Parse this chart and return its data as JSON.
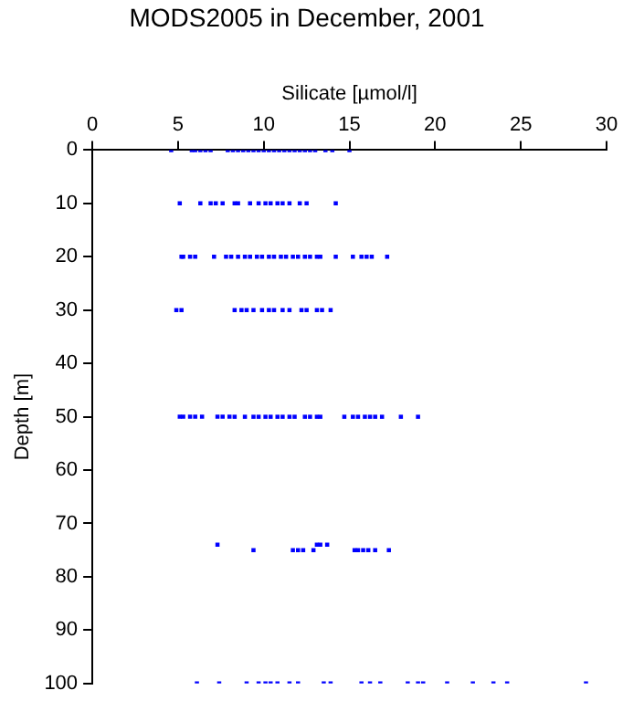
{
  "chart_data": {
    "type": "scatter",
    "title": "MODS2005 in December, 2001",
    "xlabel": "Silicate [µmol/l]",
    "ylabel": "Depth [m]",
    "xlim": [
      0,
      30
    ],
    "xticks": [
      0,
      5,
      10,
      15,
      20,
      25,
      30
    ],
    "ylim": [
      100,
      0
    ],
    "yticks": [
      0,
      10,
      20,
      30,
      40,
      50,
      60,
      70,
      80,
      90,
      100
    ],
    "grid": false,
    "legend": false,
    "marker": "square",
    "series": [
      {
        "color": "#0000ff",
        "x": [
          4.6,
          5.8,
          6.0,
          6.3,
          6.6,
          6.9,
          7.9,
          8.2,
          8.5,
          8.8,
          9.1,
          9.4,
          9.7,
          10.0,
          10.3,
          10.6,
          10.9,
          11.2,
          11.5,
          11.8,
          12.1,
          12.4,
          12.7,
          13.0,
          13.6,
          14.0,
          15.0,
          5.1,
          6.3,
          6.9,
          7.2,
          7.6,
          8.3,
          8.5,
          9.2,
          9.7,
          10.1,
          10.4,
          10.8,
          11.1,
          11.5,
          12.1,
          12.5,
          14.2,
          5.2,
          5.3,
          5.7,
          6.0,
          7.1,
          7.8,
          8.1,
          8.5,
          8.9,
          9.2,
          9.6,
          9.9,
          10.3,
          10.6,
          11.0,
          11.3,
          11.7,
          12.0,
          12.4,
          12.7,
          13.1,
          13.3,
          14.2,
          15.2,
          15.7,
          16.0,
          16.3,
          17.2,
          4.9,
          5.2,
          8.3,
          8.7,
          9.0,
          9.4,
          9.9,
          10.3,
          10.6,
          11.1,
          11.5,
          12.2,
          12.5,
          13.1,
          13.4,
          13.9,
          5.1,
          5.3,
          5.7,
          6.0,
          6.4,
          7.3,
          7.6,
          8.0,
          8.3,
          8.9,
          9.4,
          9.7,
          10.1,
          10.4,
          10.8,
          11.1,
          11.5,
          11.8,
          12.4,
          12.7,
          13.1,
          13.3,
          14.7,
          15.2,
          15.5,
          15.9,
          16.2,
          16.5,
          16.9,
          18.0,
          19.0,
          7.3,
          13.1,
          13.3,
          13.7,
          9.4,
          11.7,
          12.0,
          12.3,
          12.9,
          15.3,
          15.5,
          15.8,
          16.1,
          16.5,
          17.3,
          6.1,
          7.4,
          9.0,
          9.7,
          10.1,
          10.4,
          10.8,
          11.5,
          12.0,
          13.5,
          13.9,
          15.7,
          16.2,
          16.8,
          18.4,
          19.0,
          19.3,
          20.7,
          22.2,
          23.4,
          24.2,
          28.8
        ],
        "values": [
          0,
          0,
          0,
          0,
          0,
          0,
          0,
          0,
          0,
          0,
          0,
          0,
          0,
          0,
          0,
          0,
          0,
          0,
          0,
          0,
          0,
          0,
          0,
          0,
          0,
          0,
          0,
          10,
          10,
          10,
          10,
          10,
          10,
          10,
          10,
          10,
          10,
          10,
          10,
          10,
          10,
          10,
          10,
          10,
          20,
          20,
          20,
          20,
          20,
          20,
          20,
          20,
          20,
          20,
          20,
          20,
          20,
          20,
          20,
          20,
          20,
          20,
          20,
          20,
          20,
          20,
          20,
          20,
          20,
          20,
          20,
          20,
          30,
          30,
          30,
          30,
          30,
          30,
          30,
          30,
          30,
          30,
          30,
          30,
          30,
          30,
          30,
          30,
          50,
          50,
          50,
          50,
          50,
          50,
          50,
          50,
          50,
          50,
          50,
          50,
          50,
          50,
          50,
          50,
          50,
          50,
          50,
          50,
          50,
          50,
          50,
          50,
          50,
          50,
          50,
          50,
          50,
          50,
          50,
          74,
          74,
          74,
          74,
          75,
          75,
          75,
          75,
          75,
          75,
          75,
          75,
          75,
          75,
          75,
          100,
          100,
          100,
          100,
          100,
          100,
          100,
          100,
          100,
          100,
          100,
          100,
          100,
          100,
          100,
          100,
          100,
          100,
          100,
          100,
          100,
          100
        ]
      }
    ]
  }
}
